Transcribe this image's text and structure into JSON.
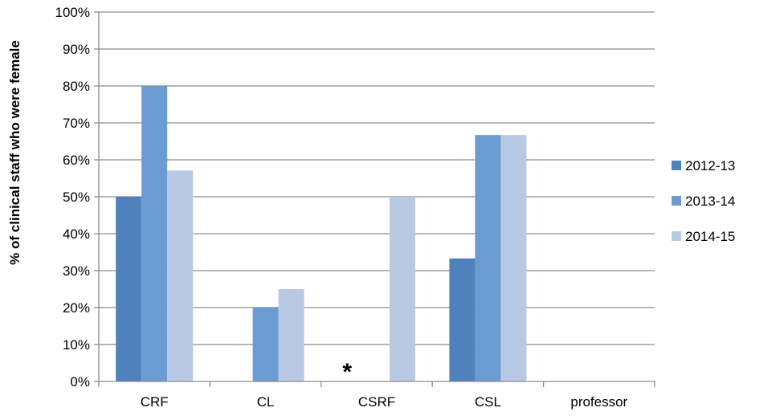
{
  "chart_data": {
    "type": "bar",
    "title": "",
    "xlabel": "",
    "ylabel": "% of clinical staff who were female",
    "ylim": [
      0,
      100
    ],
    "yticks": [
      "0%",
      "10%",
      "20%",
      "30%",
      "40%",
      "50%",
      "60%",
      "70%",
      "80%",
      "90%",
      "100%"
    ],
    "grid": true,
    "legend_position": "right",
    "categories": [
      "CRF",
      "CL",
      "CSRF",
      "CSL",
      "professor"
    ],
    "series": [
      {
        "name": "2012-13",
        "color": "#4f81bd",
        "values": [
          50,
          0,
          0,
          33.3,
          0
        ]
      },
      {
        "name": "2013-14",
        "color": "#6a9bd1",
        "values": [
          80,
          20,
          0,
          66.7,
          0
        ]
      },
      {
        "name": "2014-15",
        "color": "#b9c9e3",
        "values": [
          57.1,
          25,
          50,
          66.7,
          0
        ]
      }
    ],
    "annotations": [
      {
        "text": "*",
        "category": "CSRF",
        "y": 0
      }
    ]
  }
}
